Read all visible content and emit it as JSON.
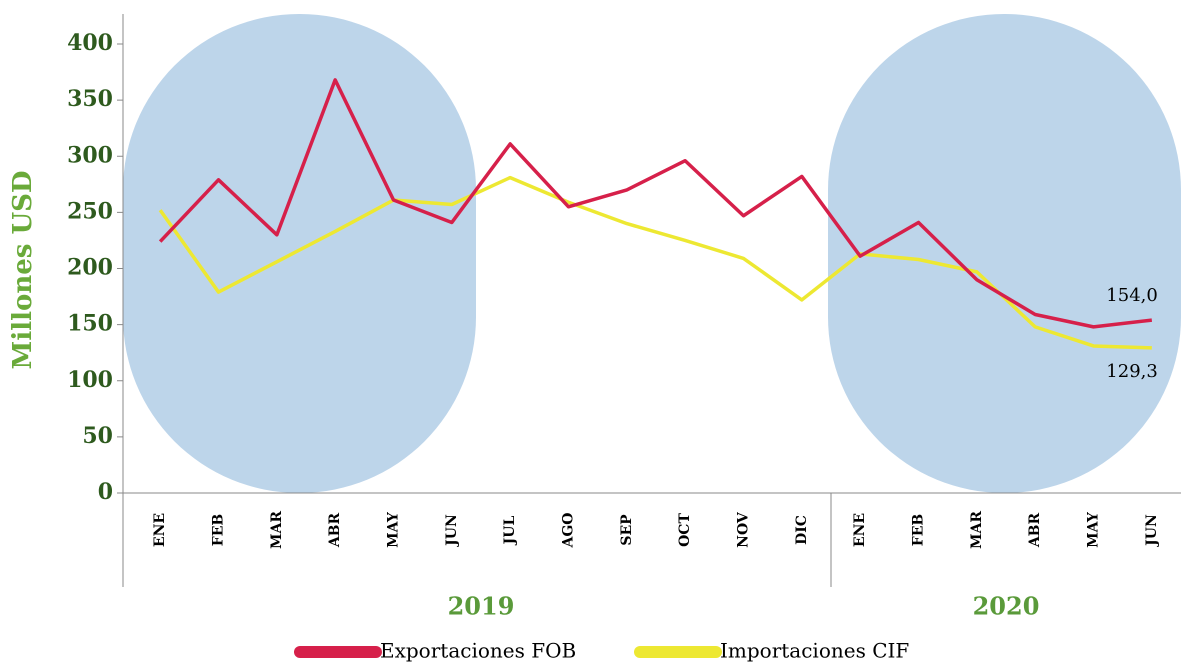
{
  "chart_data": {
    "type": "line",
    "y_axis_label": "Millones USD",
    "categories": [
      "ENE",
      "FEB",
      "MAR",
      "ABR",
      "MAY",
      "JUN",
      "JUL",
      "AGO",
      "SEP",
      "OCT",
      "NOV",
      "DIC",
      "ENE",
      "FEB",
      "MAR",
      "ABR",
      "MAY",
      "JUN"
    ],
    "x_groups": [
      {
        "label": "2019",
        "count": 12
      },
      {
        "label": "2020",
        "count": 6
      }
    ],
    "series": [
      {
        "name": "Exportaciones FOB",
        "color": "#d6204a",
        "values": [
          224,
          279,
          230,
          368,
          261,
          241,
          311,
          255,
          270,
          296,
          247,
          282,
          211,
          241,
          190,
          159,
          148,
          154.0
        ],
        "value_labels": [
          null,
          null,
          null,
          null,
          null,
          null,
          null,
          null,
          null,
          null,
          null,
          null,
          null,
          null,
          null,
          null,
          null,
          "154,0"
        ]
      },
      {
        "name": "Importaciones CIF",
        "color": "#ede832",
        "values": [
          252,
          179,
          206,
          233,
          261,
          257,
          281,
          259,
          240,
          225,
          209,
          172,
          213,
          208,
          197,
          148,
          131,
          129.3
        ],
        "value_labels": [
          null,
          null,
          null,
          null,
          null,
          null,
          null,
          null,
          null,
          null,
          null,
          null,
          null,
          null,
          null,
          null,
          null,
          "129,3"
        ]
      }
    ],
    "ylim": [
      0,
      400
    ],
    "yticks": [
      0,
      50,
      100,
      150,
      200,
      250,
      300,
      350,
      400
    ],
    "legend": "bottom"
  }
}
